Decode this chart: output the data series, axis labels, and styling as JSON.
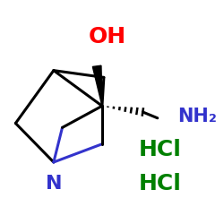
{
  "bg_color": "#ffffff",
  "bond_color": "#000000",
  "N_color": "#3333cc",
  "O_color": "#ff0000",
  "NH2_color": "#3333cc",
  "HCl_color": "#008000",
  "OH_text": "OH",
  "NH2_text": "NH₂",
  "N_text": "N",
  "HCl1_text": "HCl",
  "HCl2_text": "HCl"
}
